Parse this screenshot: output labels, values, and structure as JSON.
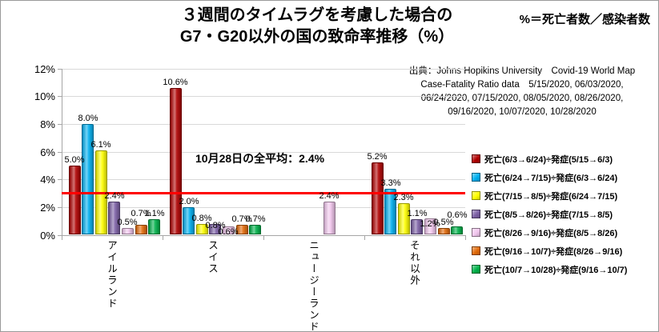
{
  "title": {
    "line1": "３週間のタイムラグを考慮した場合の",
    "line2": "G7・G20以外の国の致命率推移（%）"
  },
  "formula": "%＝死亡者数／感染者数",
  "source_lines": [
    "出典：Johns Hopikins University　Covid-19 World Map",
    "Case-Fatality Ratio data　5/15/2020, 06/03/2020,",
    "06/24/2020, 07/15/2020, 08/05/2020, 08/26/2020,",
    "09/16/2020, 10/07/2020, 10/28/2020"
  ],
  "annotation": "10月28日の全平均：2.4%",
  "chart_data": {
    "type": "bar",
    "title": "３週間のタイムラグを考慮した場合のG7・G20以外の国の致命率推移（%）",
    "categories": [
      "アイルランド",
      "スイス",
      "ニュージーランド",
      "それ以外"
    ],
    "series": [
      {
        "name": "死亡(6/3→6/24)÷発症(5/15→6/3)",
        "color": "#b00000",
        "values": [
          5.0,
          10.6,
          0,
          5.2
        ]
      },
      {
        "name": "死亡(6/24→7/15)÷発症(6/3→6/24)",
        "color": "#00b0f0",
        "values": [
          8.0,
          2.0,
          0,
          3.3
        ]
      },
      {
        "name": "死亡(7/15→8/5)÷発症(6/24→7/15)",
        "color": "#ffff00",
        "values": [
          6.1,
          0.8,
          0,
          2.3
        ]
      },
      {
        "name": "死亡(8/5→8/26)÷発症(7/15→8/5)",
        "color": "#7c60a5",
        "values": [
          2.4,
          0.8,
          0,
          1.1
        ]
      },
      {
        "name": "死亡(8/26→9/16)÷発症(8/5→8/26)",
        "color": "#f2c7ee",
        "values": [
          0.5,
          0.6,
          2.4,
          1.2
        ]
      },
      {
        "name": "死亡(9/16→10/7)÷発症(8/26→9/16)",
        "color": "#e26b0a",
        "values": [
          0.7,
          0.7,
          0,
          0.5
        ]
      },
      {
        "name": "死亡(10/7→10/28)÷発症(9/16→10/7)",
        "color": "#00b24a",
        "values": [
          1.1,
          0.7,
          0,
          0.6
        ]
      }
    ],
    "ylim": [
      0,
      12
    ],
    "ytick_step": 2,
    "ytick_labels": [
      "0%",
      "2%",
      "4%",
      "6%",
      "8%",
      "10%",
      "12%"
    ],
    "grid": true,
    "legend_position": "right",
    "value_label_format": "one-decimal-percent",
    "reference_line": {
      "value": 3.1,
      "color": "#ff0000"
    },
    "label_offsets": {
      "5-0": -7,
      "3-1": 9,
      "4-1": 14,
      "4-3": 14,
      "6-3": -7
    }
  }
}
